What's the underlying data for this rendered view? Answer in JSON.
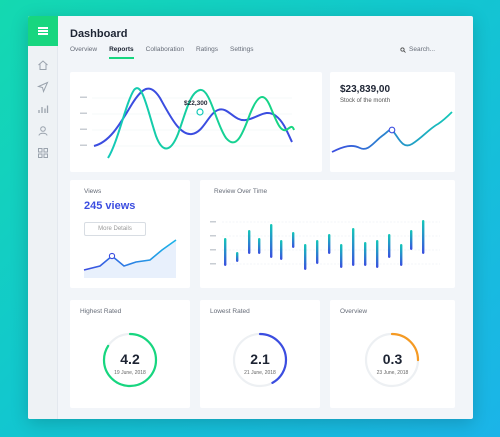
{
  "header": {
    "title": "Dashboard"
  },
  "tabs": [
    {
      "label": "Overview"
    },
    {
      "label": "Reports"
    },
    {
      "label": "Collaboration"
    },
    {
      "label": "Ratings"
    },
    {
      "label": "Settings"
    }
  ],
  "search": {
    "placeholder": "Search..."
  },
  "sidebar": {
    "icons": [
      "home-icon",
      "send-icon",
      "bar-chart-icon",
      "user-icon",
      "grid-icon"
    ]
  },
  "main_chart": {
    "annotation": "$22,300"
  },
  "stock": {
    "value": "$23,839,00",
    "label": "Stock of the month"
  },
  "views": {
    "label": "Views",
    "value": "245 views",
    "button": "More Details"
  },
  "review": {
    "label": "Review Over Time"
  },
  "highest": {
    "label": "Highest Rated",
    "value": "4.2",
    "date": "19 June, 2018",
    "fraction": 0.84,
    "color": "#17d67f"
  },
  "lowest": {
    "label": "Lowest Rated",
    "value": "2.1",
    "date": "21 June, 2018",
    "fraction": 0.42,
    "color": "#3b4de0"
  },
  "overview": {
    "label": "Overview",
    "value": "0.3",
    "date": "23 June, 2018",
    "fraction": 0.25,
    "color": "#f59a23"
  },
  "colors": {
    "green": "#17d67f",
    "blue": "#3b4de0",
    "teal": "#14c9b8",
    "orange": "#f59a23"
  }
}
